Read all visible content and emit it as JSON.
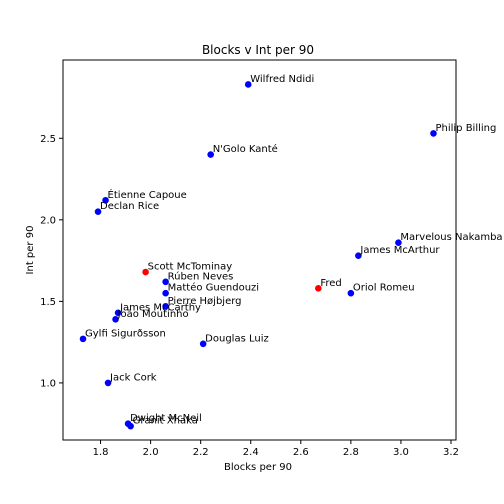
{
  "chart_data": {
    "type": "scatter",
    "title": "Blocks v Int per 90",
    "xlabel": "Blocks per 90",
    "ylabel": "Int per 90",
    "xlim": [
      1.65,
      3.22
    ],
    "ylim": [
      0.65,
      2.98
    ],
    "xticks": [
      "1.8",
      "2.0",
      "2.2",
      "2.4",
      "2.6",
      "2.8",
      "3.0",
      "3.2"
    ],
    "yticks": [
      "1.0",
      "1.5",
      "2.0",
      "2.5"
    ],
    "xtick_values": [
      1.8,
      2.0,
      2.2,
      2.4,
      2.6,
      2.8,
      3.0,
      3.2
    ],
    "ytick_values": [
      1.0,
      1.5,
      2.0,
      2.5
    ],
    "grid": false,
    "colors": {
      "default": "#0000ff",
      "highlight": "#ff0000"
    },
    "points": [
      {
        "label": "Wilfred Ndidi",
        "x": 2.39,
        "y": 2.83,
        "color": "default"
      },
      {
        "label": "Philip Billing",
        "x": 3.13,
        "y": 2.53,
        "color": "default"
      },
      {
        "label": "N'Golo Kanté",
        "x": 2.24,
        "y": 2.4,
        "color": "default"
      },
      {
        "label": "Étienne Capoue",
        "x": 1.82,
        "y": 2.12,
        "color": "default"
      },
      {
        "label": "Declan Rice",
        "x": 1.79,
        "y": 2.05,
        "color": "default"
      },
      {
        "label": "Marvelous Nakamba",
        "x": 2.99,
        "y": 1.86,
        "color": "default"
      },
      {
        "label": "James McArthur",
        "x": 2.83,
        "y": 1.78,
        "color": "default"
      },
      {
        "label": "Scott McTominay",
        "x": 1.98,
        "y": 1.68,
        "color": "highlight"
      },
      {
        "label": "Rúben Neves",
        "x": 2.06,
        "y": 1.62,
        "color": "default"
      },
      {
        "label": "Fred",
        "x": 2.67,
        "y": 1.58,
        "color": "highlight"
      },
      {
        "label": "Mattéo Guendouzi",
        "x": 2.06,
        "y": 1.55,
        "color": "default"
      },
      {
        "label": "Oriol Romeu",
        "x": 2.8,
        "y": 1.55,
        "color": "default"
      },
      {
        "label": "Pierre Højbjerg",
        "x": 2.06,
        "y": 1.47,
        "color": "default"
      },
      {
        "label": "James McCarthy",
        "x": 1.87,
        "y": 1.43,
        "color": "default"
      },
      {
        "label": "João Moutinho",
        "x": 1.86,
        "y": 1.39,
        "color": "default"
      },
      {
        "label": "Gylfi Sigurðsson",
        "x": 1.73,
        "y": 1.27,
        "color": "default"
      },
      {
        "label": "Douglas Luiz",
        "x": 2.21,
        "y": 1.24,
        "color": "default"
      },
      {
        "label": "Jack Cork",
        "x": 1.83,
        "y": 1.0,
        "color": "default"
      },
      {
        "label": "Dwight McNeil",
        "x": 1.91,
        "y": 0.75,
        "color": "default"
      },
      {
        "label": "Granit Xhaka",
        "x": 1.92,
        "y": 0.735,
        "color": "default"
      }
    ]
  }
}
